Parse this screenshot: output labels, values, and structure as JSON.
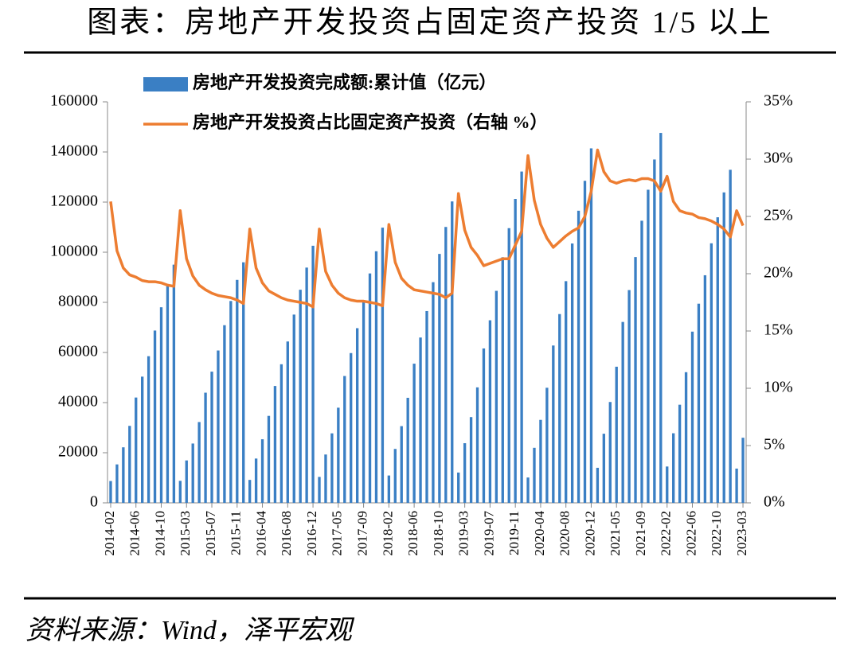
{
  "chart_data": {
    "type": "bar-line",
    "title": "图表：房地产开发投资占固定资产投资 1/5 以上",
    "source": "资料来源：Wind，泽平宏观",
    "categories": [
      "2014-02",
      null,
      null,
      null,
      "2014-06",
      null,
      null,
      null,
      "2014-10",
      null,
      null,
      null,
      "2015-03",
      null,
      null,
      null,
      "2015-07",
      null,
      null,
      null,
      "2015-11",
      null,
      null,
      null,
      "2016-04",
      null,
      null,
      null,
      "2016-08",
      null,
      null,
      null,
      "2016-12",
      null,
      null,
      null,
      "2017-05",
      null,
      null,
      null,
      "2017-09",
      null,
      null,
      null,
      "2018-02",
      null,
      null,
      null,
      "2018-06",
      null,
      null,
      null,
      "2018-10",
      null,
      null,
      null,
      "2019-03",
      null,
      null,
      null,
      "2019-07",
      null,
      null,
      null,
      "2019-11",
      null,
      null,
      null,
      "2020-04",
      null,
      null,
      null,
      "2020-08",
      null,
      null,
      null,
      "2020-12",
      null,
      null,
      null,
      "2021-05",
      null,
      null,
      null,
      "2021-09",
      null,
      null,
      null,
      "2022-02",
      null,
      null,
      null,
      "2022-06",
      null,
      null,
      null,
      "2022-10",
      null,
      null,
      null,
      "2023-03"
    ],
    "series": [
      {
        "name": "房地产开发投资完成额:累计值（亿元）",
        "type": "bar",
        "color": "#3a7fc4",
        "values": [
          8706,
          15339,
          22160,
          30716,
          42019,
          50360,
          58513,
          68751,
          78039,
          86583,
          95036,
          8786,
          16924,
          23670,
          32240,
          43955,
          52349,
          60788,
          70881,
          80536,
          88958,
          95979,
          9153,
          17677,
          25369,
          34701,
          46631,
          55302,
          64386,
          75121,
          85027,
          93870,
          102581,
          10353,
          19292,
          27732,
          37970,
          50610,
          59761,
          69694,
          80644,
          91533,
          100387,
          109799,
          10914,
          21510,
          30610,
          41912,
          55531,
          65968,
          76519,
          88048,
          99325,
          110083,
          120264,
          12090,
          23803,
          34217,
          46075,
          61609,
          72843,
          84589,
          98008,
          109603,
          121265,
          132194,
          10115,
          21963,
          33103,
          45920,
          62780,
          75325,
          88454,
          103484,
          116556,
          128492,
          141443,
          13986,
          27576,
          40240,
          54318,
          72179,
          84895,
          98060,
          112568,
          124934,
          137004,
          147602,
          14499,
          27765,
          39154,
          52134,
          68314,
          79462,
          90809,
          103559,
          113945,
          123863,
          132895,
          13669,
          25974
        ]
      },
      {
        "name": "房地产开发投资占比固定资产投资（右轴 %）",
        "type": "line",
        "axis": "y2",
        "color": "#ed7d31",
        "values": [
          26.3,
          22,
          20.5,
          19.9,
          19.7,
          19.4,
          19.3,
          19.3,
          19.2,
          19.0,
          18.9,
          25.5,
          21.3,
          19.8,
          19.0,
          18.6,
          18.3,
          18.1,
          18.0,
          17.9,
          17.7,
          17.4,
          23.9,
          20.5,
          19.2,
          18.5,
          18.2,
          17.9,
          17.7,
          17.6,
          17.5,
          17.4,
          17.1,
          23.9,
          20.2,
          19.0,
          18.3,
          17.9,
          17.7,
          17.6,
          17.6,
          17.5,
          17.4,
          17.2,
          24.3,
          21.0,
          19.6,
          19.0,
          18.6,
          18.5,
          18.4,
          18.3,
          18.2,
          17.9,
          18.3,
          27.0,
          23.8,
          22.3,
          21.6,
          20.7,
          20.9,
          21.1,
          21.3,
          21.3,
          22.5,
          23.7,
          30.3,
          26.4,
          24.3,
          23.1,
          22.3,
          22.8,
          23.3,
          23.7,
          24.0,
          25.0,
          27.2,
          30.8,
          28.9,
          28.1,
          27.9,
          28.1,
          28.2,
          28.1,
          28.3,
          28.3,
          28.1,
          27.2,
          28.5,
          26.3,
          25.5,
          25.3,
          25.2,
          24.9,
          24.8,
          24.6,
          24.3,
          23.9,
          23.2,
          25.5,
          24.2
        ]
      }
    ],
    "ylim": [
      0,
      160000
    ],
    "yticks": [
      0,
      20000,
      40000,
      60000,
      80000,
      100000,
      120000,
      140000,
      160000
    ],
    "y2lim": [
      0,
      35
    ],
    "y2ticks": [
      {
        "value": 0,
        "label": "0%"
      },
      {
        "value": 5,
        "label": "5%"
      },
      {
        "value": 10,
        "label": "10%"
      },
      {
        "value": 15,
        "label": "15%"
      },
      {
        "value": 20,
        "label": "20%"
      },
      {
        "value": 25,
        "label": "25%"
      },
      {
        "value": 30,
        "label": "30%"
      },
      {
        "value": 35,
        "label": "35%"
      }
    ],
    "legend": "upper left"
  }
}
